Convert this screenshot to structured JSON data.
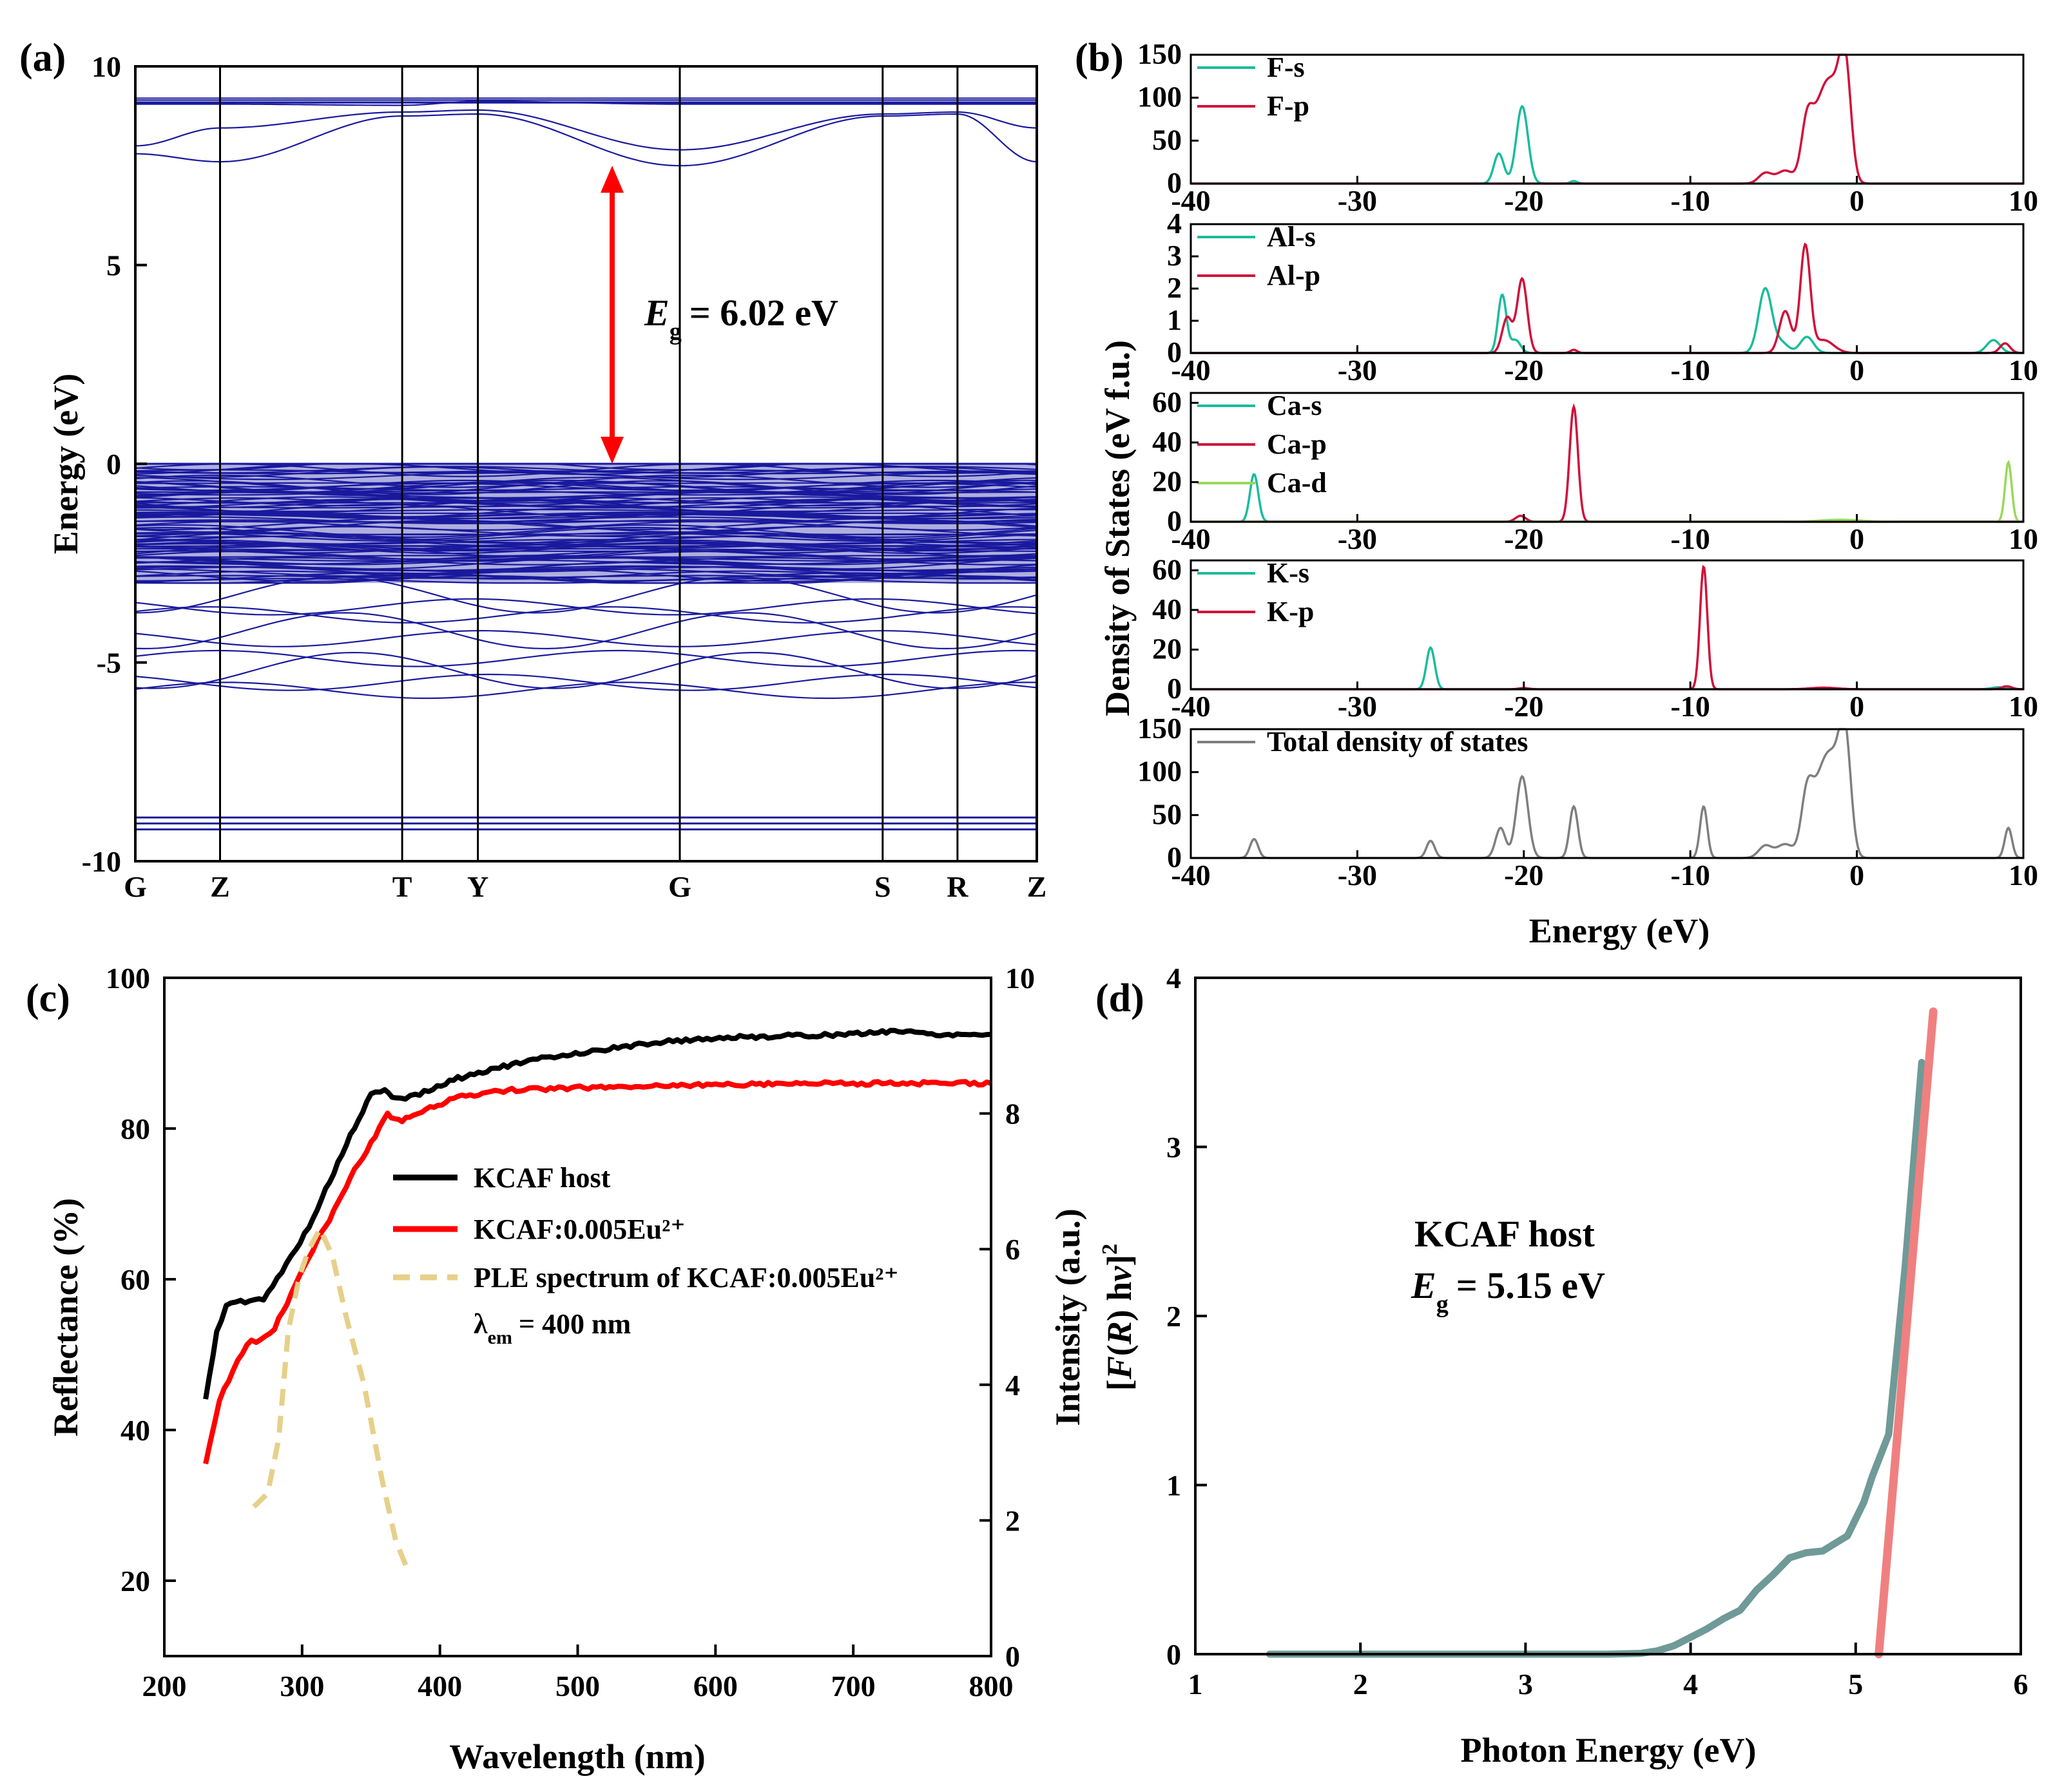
{
  "chart_data": [
    {
      "id": "a",
      "panel_label": "(a)",
      "type": "line",
      "title": "",
      "ylabel": "Energy (eV)",
      "ylim": [
        -10,
        10
      ],
      "yticks": [
        10,
        5,
        0,
        -5,
        -10
      ],
      "high_symmetry_points": [
        "G",
        "Z",
        "T",
        "Y",
        "G",
        "S",
        "R",
        "Z"
      ],
      "high_symmetry_positions": [
        0,
        0.094,
        0.296,
        0.38,
        0.604,
        0.829,
        0.912,
        1.0
      ],
      "band_color": "#1a1a9e",
      "annotation": {
        "symbol": "E",
        "subscript": "g",
        "text": "= 6.02 eV",
        "from": 0,
        "to": 7.5,
        "color": "#ff0000"
      },
      "conduction_bands": [
        [
          9.15,
          9.15,
          9.15,
          9.15,
          9.15,
          9.15,
          9.15,
          9.15
        ],
        [
          9.05,
          9.05,
          9.02,
          9.12,
          9.05,
          9.05,
          9.05,
          9.05
        ],
        [
          8.0,
          8.45,
          8.85,
          8.9,
          7.9,
          8.8,
          8.85,
          8.45
        ],
        [
          7.8,
          7.6,
          8.75,
          8.8,
          7.5,
          8.75,
          8.8,
          7.6
        ]
      ],
      "valence_range": [
        -3.0,
        0.0
      ],
      "lower_bands": [
        -3.3,
        -3.6,
        -3.8,
        -4.2,
        -4.4,
        -4.9,
        -5.2,
        -5.5,
        -5.7
      ],
      "core_bands": [
        -8.9,
        -9.05,
        -9.2
      ]
    },
    {
      "id": "b",
      "panel_label": "(b)",
      "type": "line",
      "ylabel": "Density of States (eV f.u.)",
      "xlabel": "Energy (eV)",
      "xlim": [
        -40,
        10
      ],
      "xticks": [
        -40,
        -30,
        -20,
        -10,
        0,
        10
      ],
      "subplots": [
        {
          "ylim": [
            0,
            150
          ],
          "yticks": [
            150,
            100,
            50,
            0
          ],
          "series": [
            {
              "name": "F-s",
              "color": "#1abc9c",
              "peaks": [
                [
                  -21.5,
                  35,
                  0.3
                ],
                [
                  -20.1,
                  90,
                  0.35
                ],
                [
                  -17,
                  3,
                  0.2
                ]
              ]
            },
            {
              "name": "F-p",
              "color": "#d0103a",
              "peaks": [
                [
                  -5.5,
                  12,
                  0.4
                ],
                [
                  -4.3,
                  15,
                  0.5
                ],
                [
                  -3,
                  65,
                  0.35
                ],
                [
                  -2.2,
                  75,
                  0.5
                ],
                [
                  -1.4,
                  90,
                  0.5
                ],
                [
                  -0.7,
                  125,
                  0.35
                ]
              ]
            }
          ]
        },
        {
          "ylim": [
            0,
            4
          ],
          "yticks": [
            4,
            3,
            2,
            1,
            0
          ],
          "series": [
            {
              "name": "Al-s",
              "color": "#1abc9c",
              "peaks": [
                [
                  -21.3,
                  1.8,
                  0.25
                ],
                [
                  -20.5,
                  0.4,
                  0.3
                ],
                [
                  -5.5,
                  2.0,
                  0.4
                ],
                [
                  -4.5,
                  0.3,
                  0.4
                ],
                [
                  -3,
                  0.5,
                  0.4
                ],
                [
                  8.2,
                  0.4,
                  0.4
                ]
              ]
            },
            {
              "name": "Al-p",
              "color": "#d0103a",
              "peaks": [
                [
                  -21,
                  1.1,
                  0.3
                ],
                [
                  -20.1,
                  2.3,
                  0.3
                ],
                [
                  -17,
                  0.1,
                  0.2
                ],
                [
                  -4.3,
                  1.3,
                  0.35
                ],
                [
                  -3.1,
                  3.3,
                  0.3
                ],
                [
                  -2,
                  0.4,
                  0.6
                ],
                [
                  8.9,
                  0.3,
                  0.3
                ]
              ]
            }
          ]
        },
        {
          "ylim": [
            0,
            65
          ],
          "yticks": [
            60,
            40,
            20,
            0
          ],
          "series": [
            {
              "name": "Ca-s",
              "color": "#1abc9c",
              "peaks": [
                [
                  -36.2,
                  24,
                  0.25
                ]
              ]
            },
            {
              "name": "Ca-p",
              "color": "#d0103a",
              "peaks": [
                [
                  -20.2,
                  3,
                  0.3
                ],
                [
                  -17,
                  58,
                  0.25
                ]
              ]
            },
            {
              "name": "Ca-d",
              "color": "#9ad85a",
              "peaks": [
                [
                  -1,
                  1,
                  1.2
                ],
                [
                  9.1,
                  30,
                  0.2
                ]
              ]
            }
          ]
        },
        {
          "ylim": [
            0,
            65
          ],
          "yticks": [
            60,
            40,
            20,
            0
          ],
          "series": [
            {
              "name": "K-s",
              "color": "#1abc9c",
              "peaks": [
                [
                  -25.6,
                  21,
                  0.25
                ],
                [
                  8.5,
                  1,
                  0.4
                ]
              ]
            },
            {
              "name": "K-p",
              "color": "#d0103a",
              "peaks": [
                [
                  -20,
                  0.6,
                  0.3
                ],
                [
                  -9.2,
                  62,
                  0.22
                ],
                [
                  -2,
                  0.8,
                  0.8
                ],
                [
                  9,
                  1.5,
                  0.3
                ]
              ]
            }
          ]
        },
        {
          "ylim": [
            0,
            150
          ],
          "yticks": [
            150,
            100,
            50,
            0
          ],
          "series": [
            {
              "name": "Total density of states",
              "color": "#7f7f7f",
              "peaks": [
                [
                  -36.2,
                  22,
                  0.25
                ],
                [
                  -25.6,
                  20,
                  0.25
                ],
                [
                  -21.4,
                  35,
                  0.3
                ],
                [
                  -20.1,
                  95,
                  0.35
                ],
                [
                  -17,
                  60,
                  0.25
                ],
                [
                  -9.2,
                  60,
                  0.22
                ],
                [
                  -5.5,
                  14,
                  0.4
                ],
                [
                  -4.3,
                  16,
                  0.5
                ],
                [
                  -3,
                  68,
                  0.35
                ],
                [
                  -2.2,
                  75,
                  0.5
                ],
                [
                  -1.4,
                  92,
                  0.5
                ],
                [
                  -0.7,
                  126,
                  0.35
                ],
                [
                  9.1,
                  35,
                  0.22
                ]
              ]
            }
          ]
        }
      ]
    },
    {
      "id": "c",
      "panel_label": "(c)",
      "type": "line",
      "xlabel": "Wavelength (nm)",
      "ylabel": "Reflectance (%)",
      "y2label": "Intensity (a.u.)",
      "xlim": [
        200,
        800
      ],
      "ylim": [
        10,
        100
      ],
      "y2lim": [
        0,
        10
      ],
      "xticks": [
        200,
        300,
        400,
        500,
        600,
        700,
        800
      ],
      "yticks": [
        100,
        80,
        60,
        40,
        20
      ],
      "y2ticks": [
        10,
        8,
        6,
        4,
        2,
        0
      ],
      "series": [
        {
          "name": "KCAF host",
          "color": "#000000",
          "axis": "left",
          "x": [
            230,
            238,
            245,
            252,
            262,
            272,
            282,
            292,
            305,
            320,
            335,
            350,
            360,
            368,
            375,
            382,
            392,
            410,
            440,
            480,
            520,
            560,
            600,
            650,
            700,
            730,
            760,
            800
          ],
          "y": [
            44,
            53,
            56.5,
            57,
            57,
            57.5,
            60,
            63,
            67,
            73,
            79,
            84.5,
            85,
            84,
            84,
            84.5,
            85,
            86.5,
            88,
            89.5,
            90.5,
            91.5,
            92,
            92.3,
            92.5,
            93,
            92.5,
            92.5
          ]
        },
        {
          "name": "KCAF:0.005Eu²⁺",
          "color": "#ff0000",
          "axis": "left",
          "x": [
            230,
            240,
            250,
            260,
            270,
            280,
            292,
            305,
            320,
            335,
            350,
            362,
            370,
            378,
            390,
            410,
            440,
            480,
            520,
            560,
            600,
            650,
            700,
            760,
            800
          ],
          "y": [
            35.5,
            44,
            48,
            51.5,
            52,
            53.5,
            58,
            63,
            68,
            73.5,
            78,
            82,
            81,
            81.5,
            82.5,
            84,
            85,
            85.3,
            85.5,
            85.7,
            85.8,
            86,
            86,
            86,
            86
          ]
        },
        {
          "name": "PLE spectrum of KCAF:0.005Eu²⁺",
          "color": "#e6d08a",
          "axis": "right",
          "dashed": true,
          "x": [
            265,
            275,
            283,
            290,
            298,
            305,
            313,
            322,
            332,
            345,
            358,
            368,
            376
          ],
          "y": [
            2.2,
            2.4,
            3.2,
            4.8,
            5.6,
            6.0,
            6.3,
            5.9,
            5.0,
            4.0,
            2.6,
            1.7,
            1.3
          ]
        }
      ],
      "annotation_prefix": "λ",
      "annotation_sub": "em",
      "annotation_value": "= 400 nm"
    },
    {
      "id": "d",
      "panel_label": "(d)",
      "type": "line",
      "xlabel": "Photon Energy (eV)",
      "ylabel": "[F(R) hν]²",
      "xlim": [
        1,
        6
      ],
      "ylim": [
        0,
        4
      ],
      "xticks": [
        1,
        2,
        3,
        4,
        5,
        6
      ],
      "yticks": [
        4,
        3,
        2,
        1,
        0
      ],
      "series": [
        {
          "name": "data",
          "color": "#6f9a98",
          "x": [
            1.45,
            2.0,
            2.5,
            3.0,
            3.5,
            3.7,
            3.8,
            3.9,
            4.0,
            4.1,
            4.2,
            4.3,
            4.4,
            4.5,
            4.6,
            4.7,
            4.8,
            4.9,
            4.95,
            5.05,
            5.1,
            5.2,
            5.3,
            5.4
          ],
          "y": [
            0,
            0,
            0,
            0,
            0,
            0.005,
            0.02,
            0.05,
            0.1,
            0.15,
            0.21,
            0.26,
            0.38,
            0.47,
            0.57,
            0.6,
            0.61,
            0.67,
            0.7,
            0.9,
            1.05,
            1.3,
            2.3,
            3.5
          ]
        },
        {
          "name": "fit",
          "color": "#f08080",
          "x": [
            5.14,
            5.47
          ],
          "y": [
            0,
            3.8
          ]
        }
      ],
      "label": "KCAF host",
      "eg_symbol": "E",
      "eg_sub": "g",
      "eg_value": "= 5.15 eV"
    }
  ]
}
